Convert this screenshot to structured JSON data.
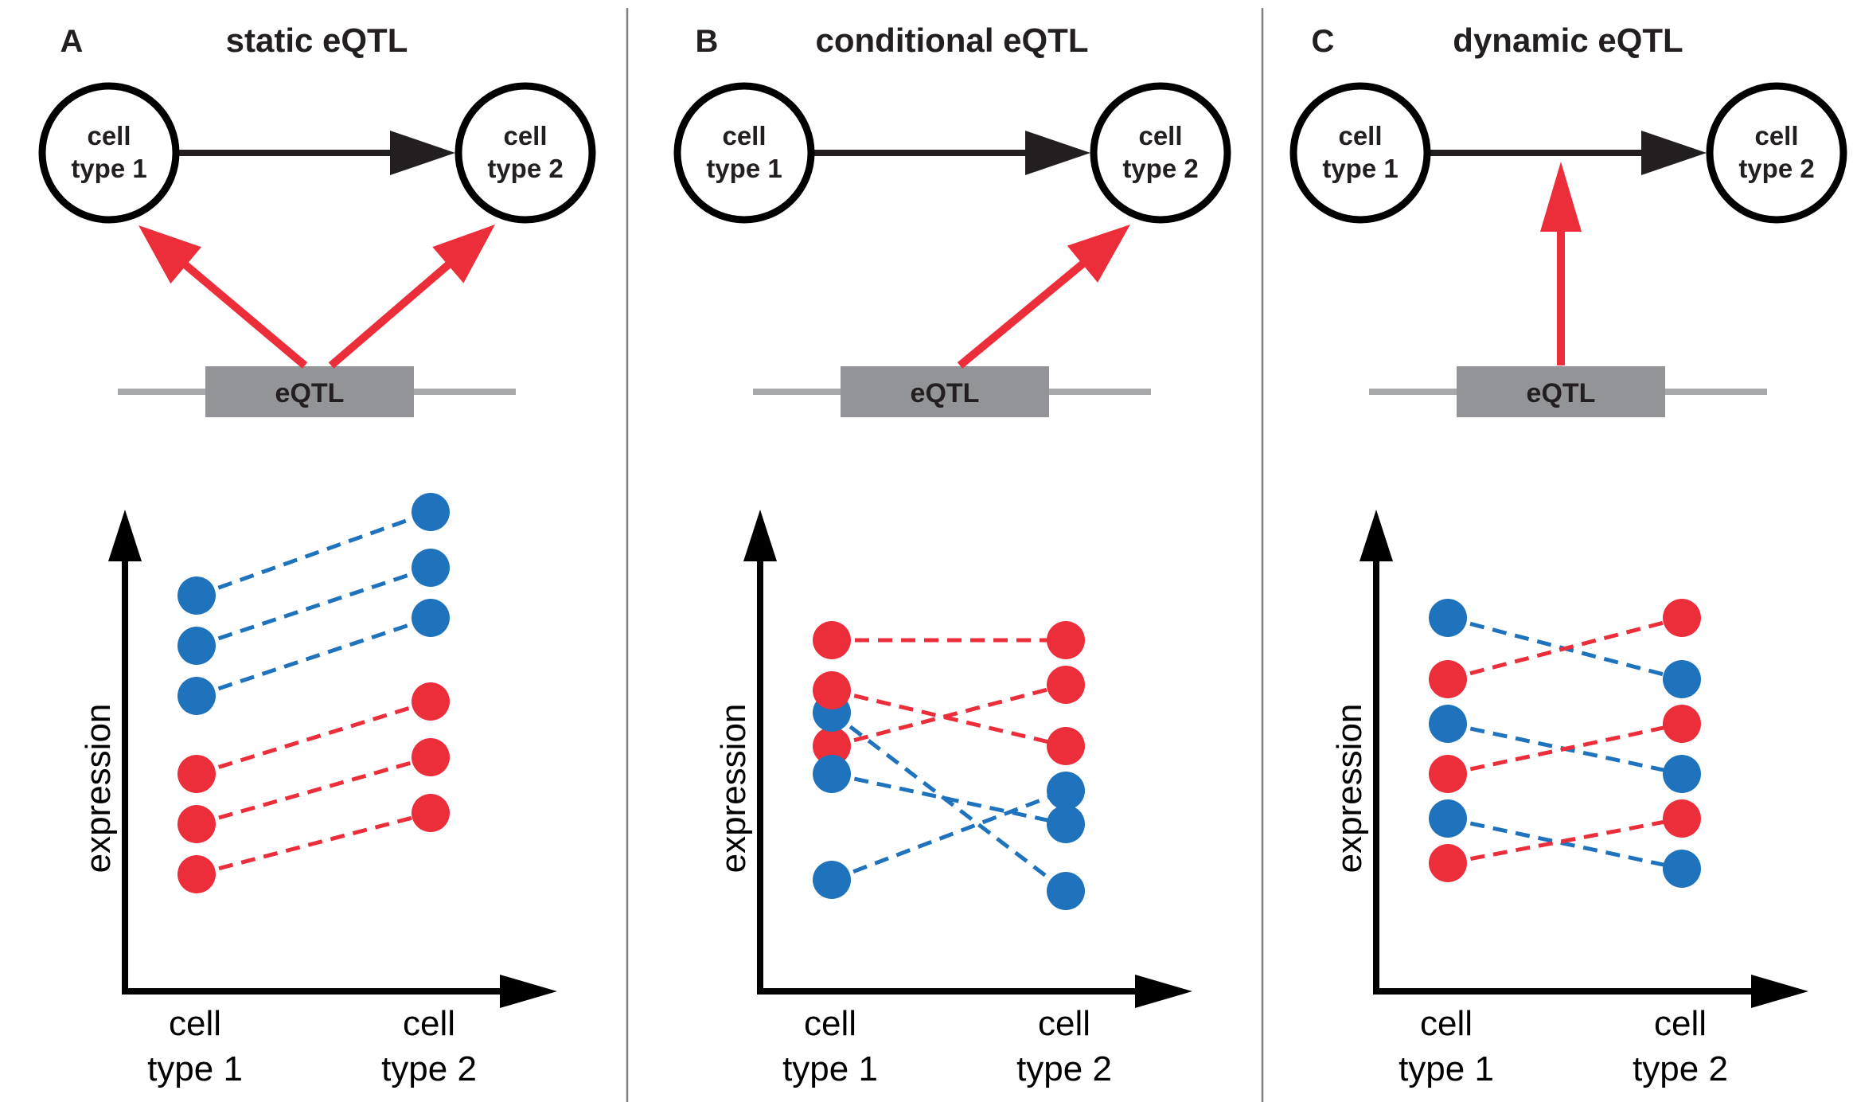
{
  "colors": {
    "red": "#ec2d3a",
    "blue": "#1f73bd",
    "dark": "#231f20",
    "gray": "#929497",
    "gray_line": "#a7a9ab",
    "divider": "#808080"
  },
  "panels": [
    {
      "letter": "A",
      "title": "static eQTL",
      "nodes": [
        [
          "cell",
          "type 1"
        ],
        [
          "cell",
          "type 2"
        ]
      ],
      "eqtl_label": "eQTL",
      "axis": {
        "ylabel": "expression",
        "xticks": [
          [
            "cell",
            "type 1"
          ],
          [
            "cell",
            "type 2"
          ]
        ]
      },
      "pairs": [
        {
          "color": "blue",
          "y1": 7.1,
          "y2": 8.6
        },
        {
          "color": "blue",
          "y1": 6.2,
          "y2": 7.6
        },
        {
          "color": "blue",
          "y1": 5.3,
          "y2": 6.7
        },
        {
          "color": "red",
          "y1": 3.9,
          "y2": 5.2
        },
        {
          "color": "red",
          "y1": 3.0,
          "y2": 4.2
        },
        {
          "color": "red",
          "y1": 2.1,
          "y2": 3.2
        }
      ]
    },
    {
      "letter": "B",
      "title": "conditional eQTL",
      "nodes": [
        [
          "cell",
          "type 1"
        ],
        [
          "cell",
          "type 2"
        ]
      ],
      "eqtl_label": "eQTL",
      "axis": {
        "ylabel": "expression",
        "xticks": [
          [
            "cell",
            "type 1"
          ],
          [
            "cell",
            "type 2"
          ]
        ]
      },
      "pairs": [
        {
          "color": "red",
          "y1": 6.3,
          "y2": 6.3
        },
        {
          "color": "red",
          "y1": 4.4,
          "y2": 5.5
        },
        {
          "color": "blue",
          "y1": 5.0,
          "y2": 1.8
        },
        {
          "color": "red",
          "y1": 5.4,
          "y2": 4.4
        },
        {
          "color": "blue",
          "y1": 3.9,
          "y2": 3.0
        },
        {
          "color": "blue",
          "y1": 2.0,
          "y2": 3.6
        }
      ]
    },
    {
      "letter": "C",
      "title": "dynamic eQTL",
      "nodes": [
        [
          "cell",
          "type 1"
        ],
        [
          "cell",
          "type 2"
        ]
      ],
      "eqtl_label": "eQTL",
      "axis": {
        "ylabel": "expression",
        "xticks": [
          [
            "cell",
            "type 1"
          ],
          [
            "cell",
            "type 2"
          ]
        ]
      },
      "pairs": [
        {
          "color": "blue",
          "y1": 6.7,
          "y2": 5.6
        },
        {
          "color": "red",
          "y1": 5.6,
          "y2": 6.7
        },
        {
          "color": "blue",
          "y1": 4.8,
          "y2": 3.9
        },
        {
          "color": "red",
          "y1": 3.9,
          "y2": 4.8
        },
        {
          "color": "blue",
          "y1": 3.1,
          "y2": 2.2
        },
        {
          "color": "red",
          "y1": 2.3,
          "y2": 3.1
        }
      ]
    }
  ]
}
